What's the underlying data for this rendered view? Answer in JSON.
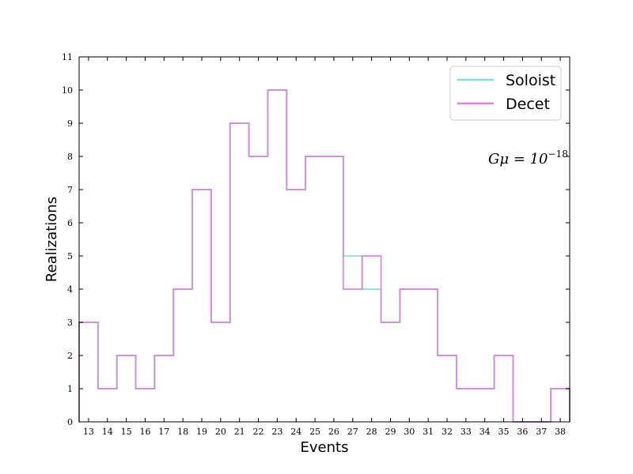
{
  "chart_data": {
    "type": "histogram-step",
    "xlabel": "Events",
    "ylabel": "Realizations",
    "x_ticks": [
      13,
      14,
      15,
      16,
      17,
      18,
      19,
      20,
      21,
      22,
      23,
      24,
      25,
      26,
      27,
      28,
      29,
      30,
      31,
      32,
      33,
      34,
      35,
      36,
      37,
      38
    ],
    "y_ticks": [
      0,
      1,
      2,
      3,
      4,
      5,
      6,
      7,
      8,
      9,
      10,
      11
    ],
    "xlim": [
      12.5,
      38.5
    ],
    "ylim": [
      0,
      11
    ],
    "grid": false,
    "legend_position": "top-right",
    "annotation": {
      "base": "Gμ = 10",
      "exponent": "−18"
    },
    "bins": [
      13,
      14,
      15,
      16,
      17,
      18,
      19,
      20,
      21,
      22,
      23,
      24,
      25,
      26,
      27,
      28,
      29,
      30,
      31,
      32,
      33,
      34,
      35,
      36,
      37,
      38
    ],
    "series": [
      {
        "name": "Soloist",
        "color": "#7fe0d8",
        "values": [
          3,
          1,
          2,
          1,
          2,
          4,
          7,
          3,
          9,
          8,
          10,
          7,
          8,
          8,
          5,
          4,
          3,
          4,
          4,
          2,
          1,
          1,
          2,
          0,
          0,
          1
        ]
      },
      {
        "name": "Decet",
        "color": "#dd80e0",
        "values": [
          3,
          1,
          2,
          1,
          2,
          4,
          7,
          3,
          9,
          8,
          10,
          7,
          8,
          8,
          4,
          5,
          3,
          4,
          4,
          2,
          1,
          1,
          2,
          0,
          0,
          1
        ]
      }
    ]
  }
}
